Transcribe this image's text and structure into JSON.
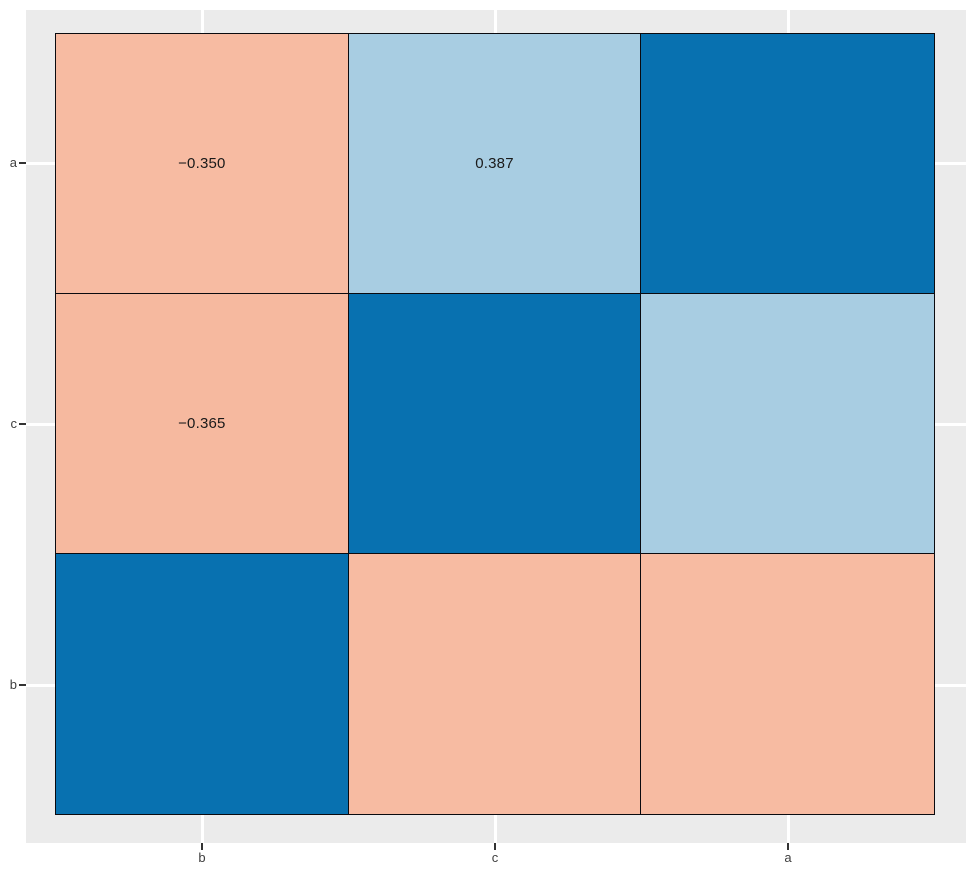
{
  "chart_data": {
    "type": "heatmap",
    "title": "",
    "xlabel": "",
    "ylabel": "",
    "legend_position": "none",
    "x_categories": [
      "b",
      "c",
      "a"
    ],
    "y_categories_top_to_bottom": [
      "a",
      "c",
      "b"
    ],
    "cells": [
      {
        "row": "a",
        "col": "b",
        "label": "−0.350",
        "color": "#F7BBA2"
      },
      {
        "row": "a",
        "col": "c",
        "label": "0.387",
        "color": "#A8CDE2"
      },
      {
        "row": "a",
        "col": "a",
        "label": "",
        "color": "#0871B0"
      },
      {
        "row": "c",
        "col": "b",
        "label": "−0.365",
        "color": "#F6B99F"
      },
      {
        "row": "c",
        "col": "c",
        "label": "",
        "color": "#0871B0"
      },
      {
        "row": "c",
        "col": "a",
        "label": "",
        "color": "#A8CDE2"
      },
      {
        "row": "b",
        "col": "b",
        "label": "",
        "color": "#0871B0"
      },
      {
        "row": "b",
        "col": "c",
        "label": "",
        "color": "#F7BBA2"
      },
      {
        "row": "b",
        "col": "a",
        "label": "",
        "color": "#F7BBA2"
      }
    ],
    "colors": {
      "negative_fill": "#F7BBA2",
      "weak_positive_fill": "#A8CDE2",
      "strong_positive_fill": "#0871B0",
      "panel_background": "#EBEBEB",
      "grid_line": "#FFFFFF",
      "tile_border": "#0A0A0F",
      "tick_mark": "#333333",
      "axis_text": "#404040",
      "cell_text": "#1A1A1A"
    },
    "grid": true
  },
  "axes": {
    "y_ticks": [
      "a",
      "c",
      "b"
    ],
    "x_ticks": [
      "b",
      "c",
      "a"
    ]
  }
}
